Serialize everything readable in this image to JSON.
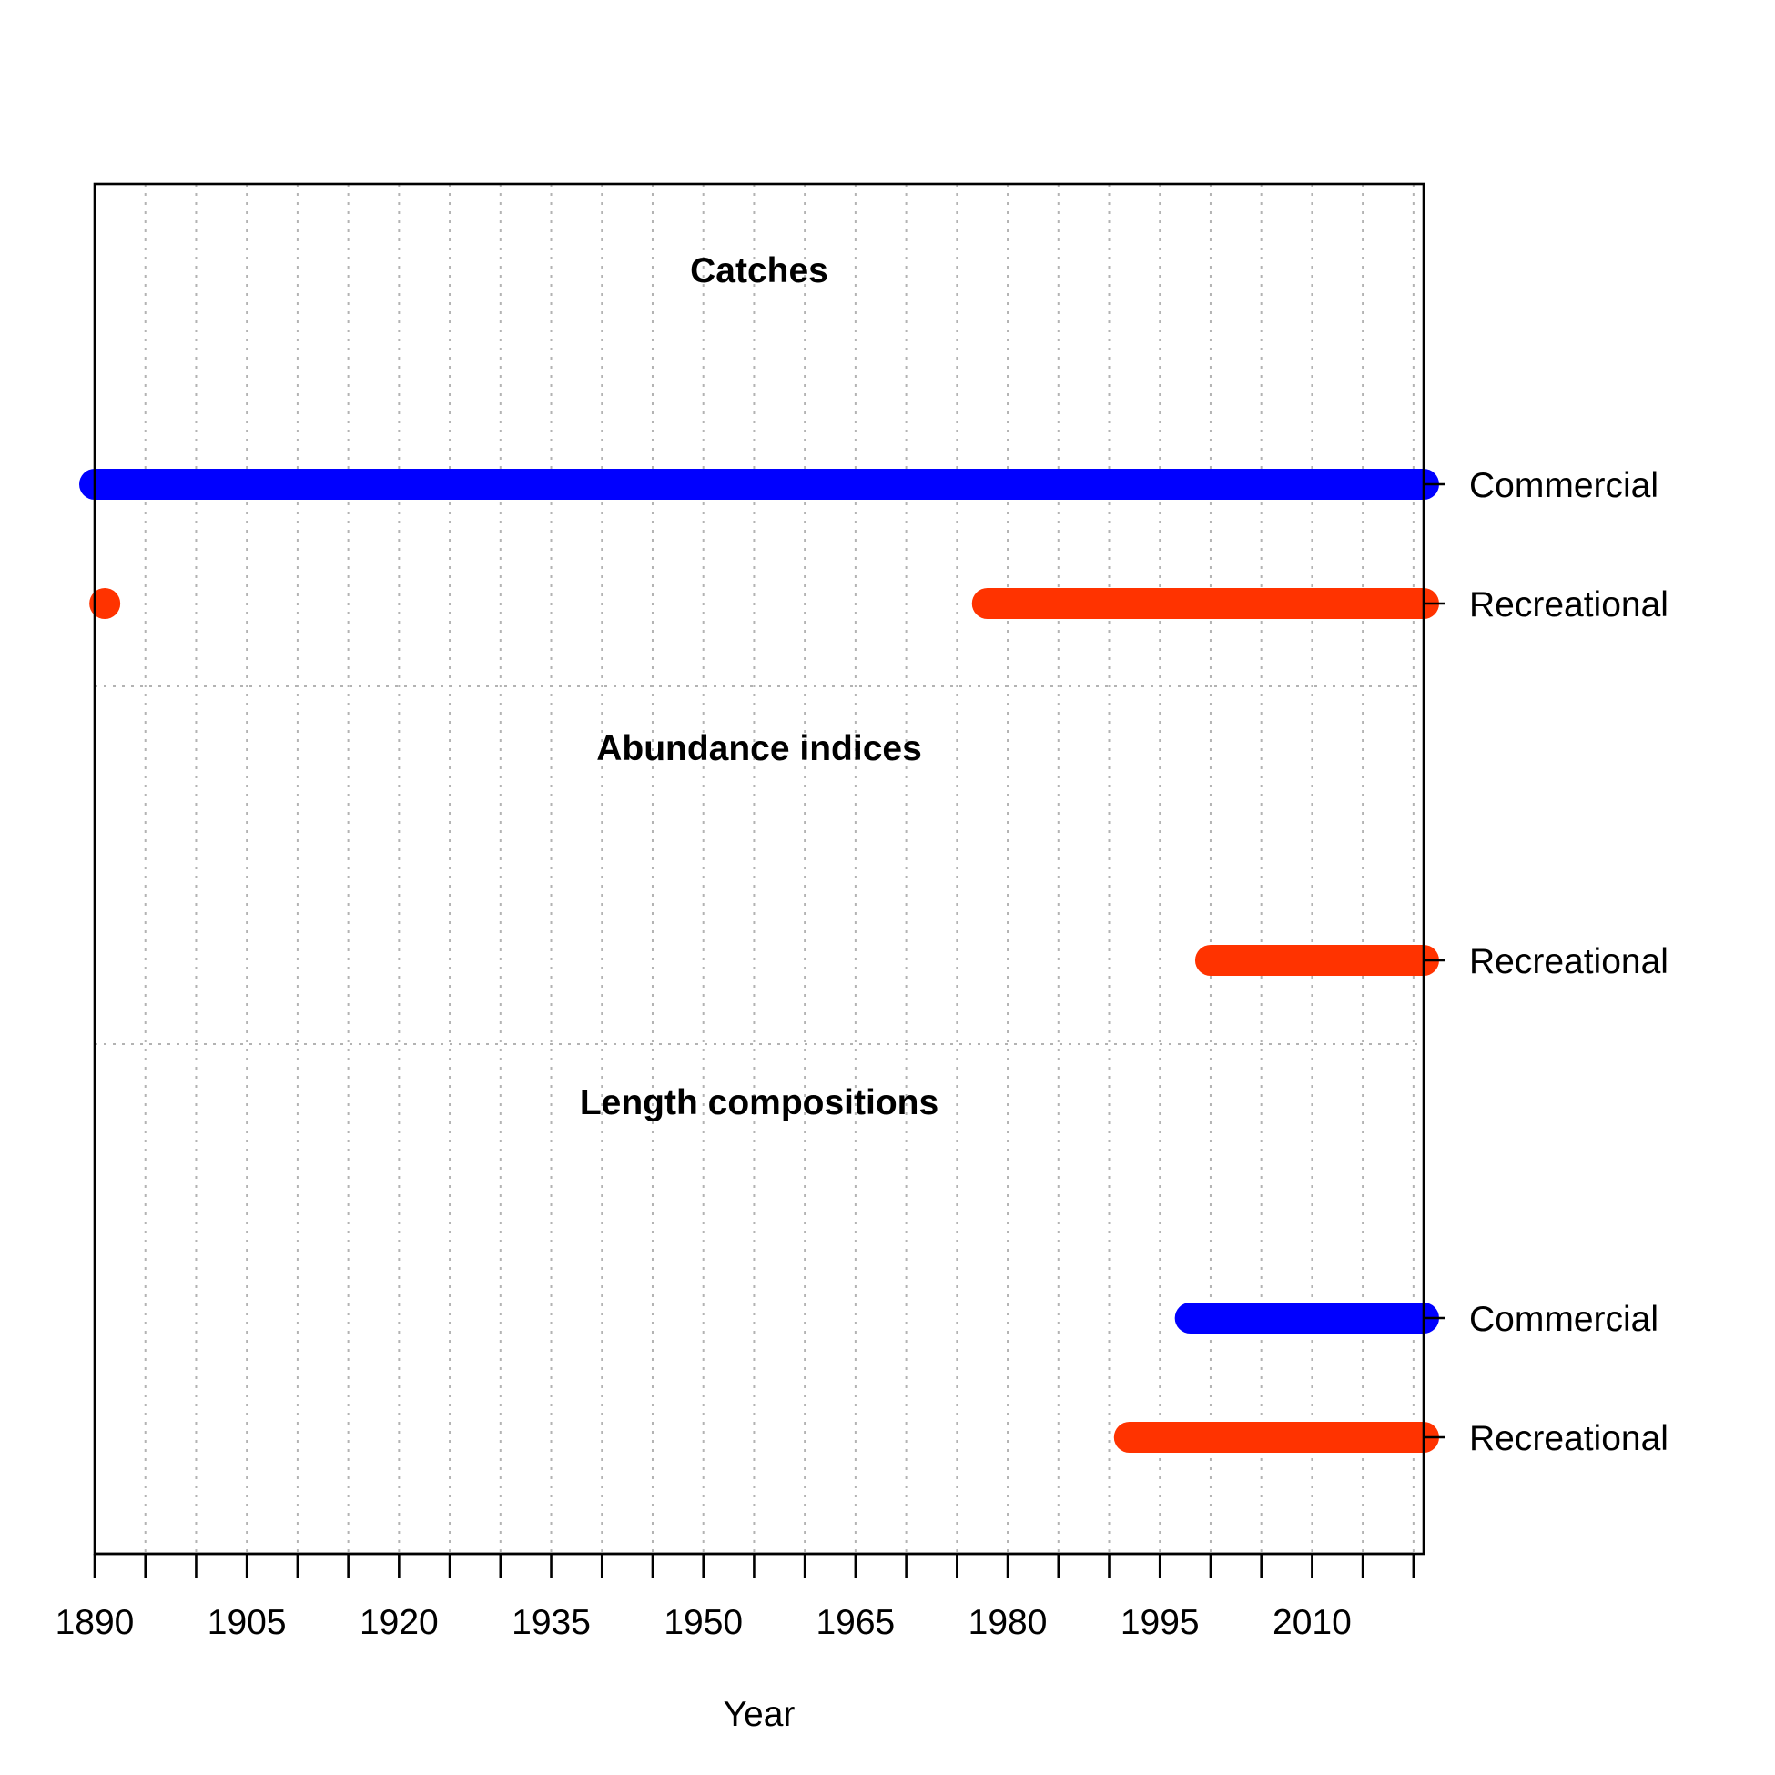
{
  "chart_data": {
    "type": "timeline",
    "xlabel": "Year",
    "xlim": [
      1890,
      2021
    ],
    "x_ticks": [
      1890,
      1905,
      1920,
      1935,
      1950,
      1965,
      1980,
      1995,
      2010
    ],
    "minor_tick_step": 5,
    "grid": true,
    "colors": {
      "Commercial": "#0000ff",
      "Recreational": "#ff3300"
    },
    "sections": [
      {
        "title": "Catches",
        "rows": [
          {
            "label": "Commercial",
            "segments": [
              [
                1890,
                2021
              ]
            ]
          },
          {
            "label": "Recreational",
            "segments": [
              [
                1891,
                1891
              ],
              [
                1978,
                2021
              ]
            ]
          }
        ]
      },
      {
        "title": "Abundance indices",
        "rows": [
          {
            "label": "Recreational",
            "segments": [
              [
                2000,
                2021
              ]
            ]
          }
        ]
      },
      {
        "title": "Length compositions",
        "rows": [
          {
            "label": "Commercial",
            "segments": [
              [
                1998,
                2021
              ]
            ]
          },
          {
            "label": "Recreational",
            "segments": [
              [
                1992,
                2021
              ]
            ]
          }
        ]
      }
    ]
  }
}
